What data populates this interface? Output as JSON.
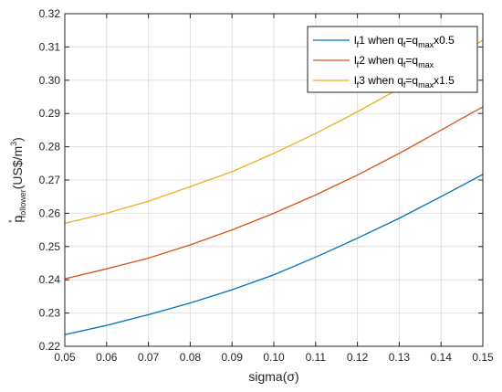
{
  "chart_data": {
    "type": "line",
    "title": "",
    "xlabel": "sigma(σ)",
    "ylabel": {
      "base": "p",
      "sup": "*",
      "sub": "follower",
      "rest": "(US$/m",
      "unit_sup": "3",
      "close": ")"
    },
    "xlim": [
      0.05,
      0.15
    ],
    "ylim": [
      0.22,
      0.32
    ],
    "xticks": [
      "0.05",
      "0.06",
      "0.07",
      "0.08",
      "0.09",
      "0.10",
      "0.11",
      "0.12",
      "0.13",
      "0.14",
      "0.15"
    ],
    "yticks": [
      "0.22",
      "0.23",
      "0.24",
      "0.25",
      "0.26",
      "0.27",
      "0.28",
      "0.29",
      "0.30",
      "0.31",
      "0.32"
    ],
    "grid": true,
    "legend_position": "top-right",
    "x": [
      0.05,
      0.06,
      0.07,
      0.08,
      0.09,
      0.1,
      0.11,
      0.12,
      0.13,
      0.14,
      0.15
    ],
    "series": [
      {
        "legend": {
          "l": "l",
          "lsub": "f",
          "num": "1 when q",
          "qsub": "f",
          "eq": "=q",
          "msub": "max",
          "tail": "x0.5"
        },
        "color": "#0072BD",
        "values": [
          0.2235,
          0.2263,
          0.2295,
          0.233,
          0.237,
          0.2415,
          0.2468,
          0.2525,
          0.2585,
          0.265,
          0.2717
        ]
      },
      {
        "legend": {
          "l": "l",
          "lsub": "f",
          "num": "2 when q",
          "qsub": "f",
          "eq": "=q",
          "msub": "max",
          "tail": ""
        },
        "color": "#D95319",
        "values": [
          0.2403,
          0.2433,
          0.2465,
          0.2505,
          0.255,
          0.26,
          0.2655,
          0.2715,
          0.278,
          0.285,
          0.292
        ]
      },
      {
        "legend": {
          "l": "l",
          "lsub": "f",
          "num": "3 when q",
          "qsub": "f",
          "eq": "=q",
          "msub": "max",
          "tail": "x1.5"
        },
        "color": "#EDB120",
        "values": [
          0.257,
          0.26,
          0.2636,
          0.268,
          0.2725,
          0.278,
          0.284,
          0.2905,
          0.2975,
          0.3045,
          0.312
        ]
      }
    ]
  }
}
